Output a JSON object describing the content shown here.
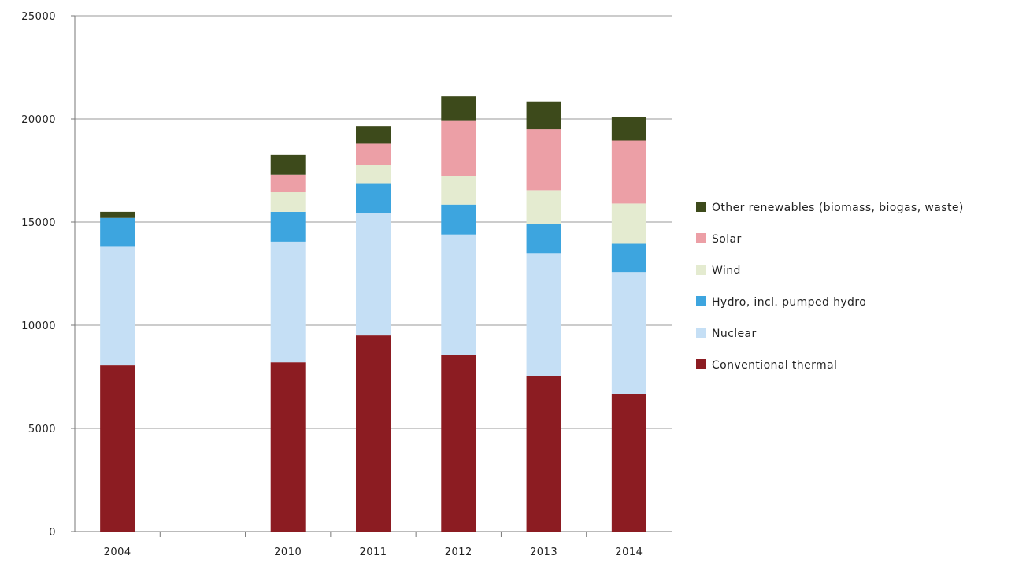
{
  "chart_data": {
    "type": "bar",
    "stacked": true,
    "categories": [
      "2004",
      "",
      "2010",
      "2011",
      "2012",
      "2013",
      "2014"
    ],
    "series": [
      {
        "name": "Conventional thermal",
        "color": "#8c1c22",
        "values": [
          8050,
          null,
          8200,
          9500,
          8550,
          7550,
          6650
        ]
      },
      {
        "name": "Nuclear",
        "color": "#c5dff5",
        "values": [
          5750,
          null,
          5850,
          5950,
          5850,
          5950,
          5900
        ]
      },
      {
        "name": "Hydro, incl. pumped hydro",
        "color": "#3da5df",
        "values": [
          1400,
          null,
          1450,
          1400,
          1450,
          1400,
          1400
        ]
      },
      {
        "name": "Wind",
        "color": "#e4ebd0",
        "values": [
          0,
          null,
          950,
          900,
          1400,
          1650,
          1950
        ]
      },
      {
        "name": "Solar",
        "color": "#ec9fa6",
        "values": [
          0,
          null,
          850,
          1050,
          2650,
          2950,
          3050
        ]
      },
      {
        "name": "Other renewables (biomass, biogas, waste)",
        "color": "#3d4a1b",
        "values": [
          300,
          null,
          950,
          850,
          1200,
          1350,
          1150
        ]
      }
    ],
    "yticks": [
      "0",
      "5000",
      "10000",
      "15000",
      "20000",
      "25000"
    ],
    "ylim": [
      0,
      25000
    ],
    "grid": true,
    "legend_position": "right",
    "legend_order": [
      "Other renewables (biomass, biogas, waste)",
      "Solar",
      "Wind",
      "Hydro, incl. pumped hydro",
      "Nuclear",
      "Conventional thermal"
    ]
  }
}
